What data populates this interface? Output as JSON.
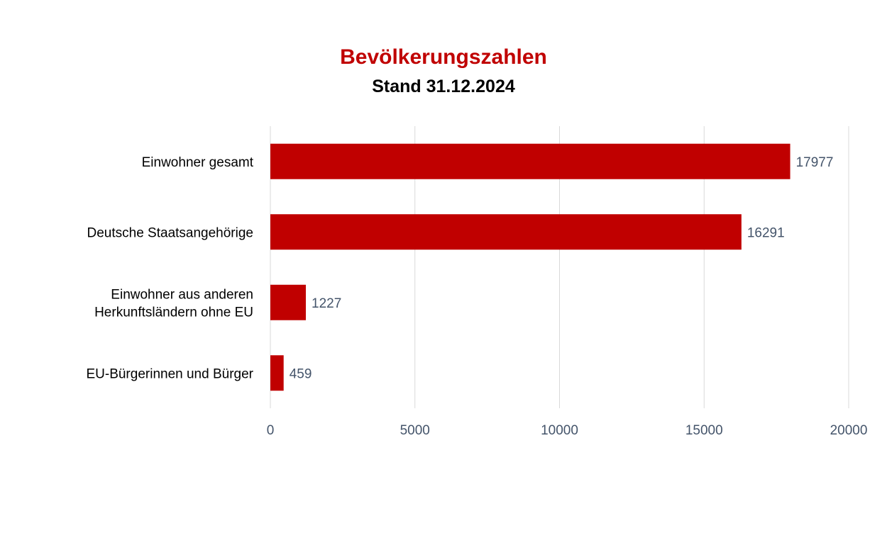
{
  "chart_data": {
    "type": "bar",
    "orientation": "horizontal",
    "title": "Bevölkerungszahlen",
    "subtitle": "Stand 31.12.2024",
    "categories": [
      [
        "Einwohner gesamt"
      ],
      [
        "Deutsche Staatsangehörige"
      ],
      [
        "Einwohner aus anderen",
        "Herkunftsländern ohne EU"
      ],
      [
        "EU-Bürgerinnen und Bürger"
      ]
    ],
    "values": [
      17977,
      16291,
      1227,
      459
    ],
    "xlim": [
      0,
      20000
    ],
    "x_ticks": [
      0,
      5000,
      10000,
      15000,
      20000
    ],
    "x_tick_labels": [
      "0",
      "5000",
      "10000",
      "15000",
      "20000"
    ],
    "grid": "vertical",
    "data_labels": true,
    "colors": {
      "bar": "#c00000",
      "title": "#c00000",
      "subtitle": "#000000",
      "axis_text": "#44546a",
      "gridline": "#d9d9d9"
    }
  }
}
